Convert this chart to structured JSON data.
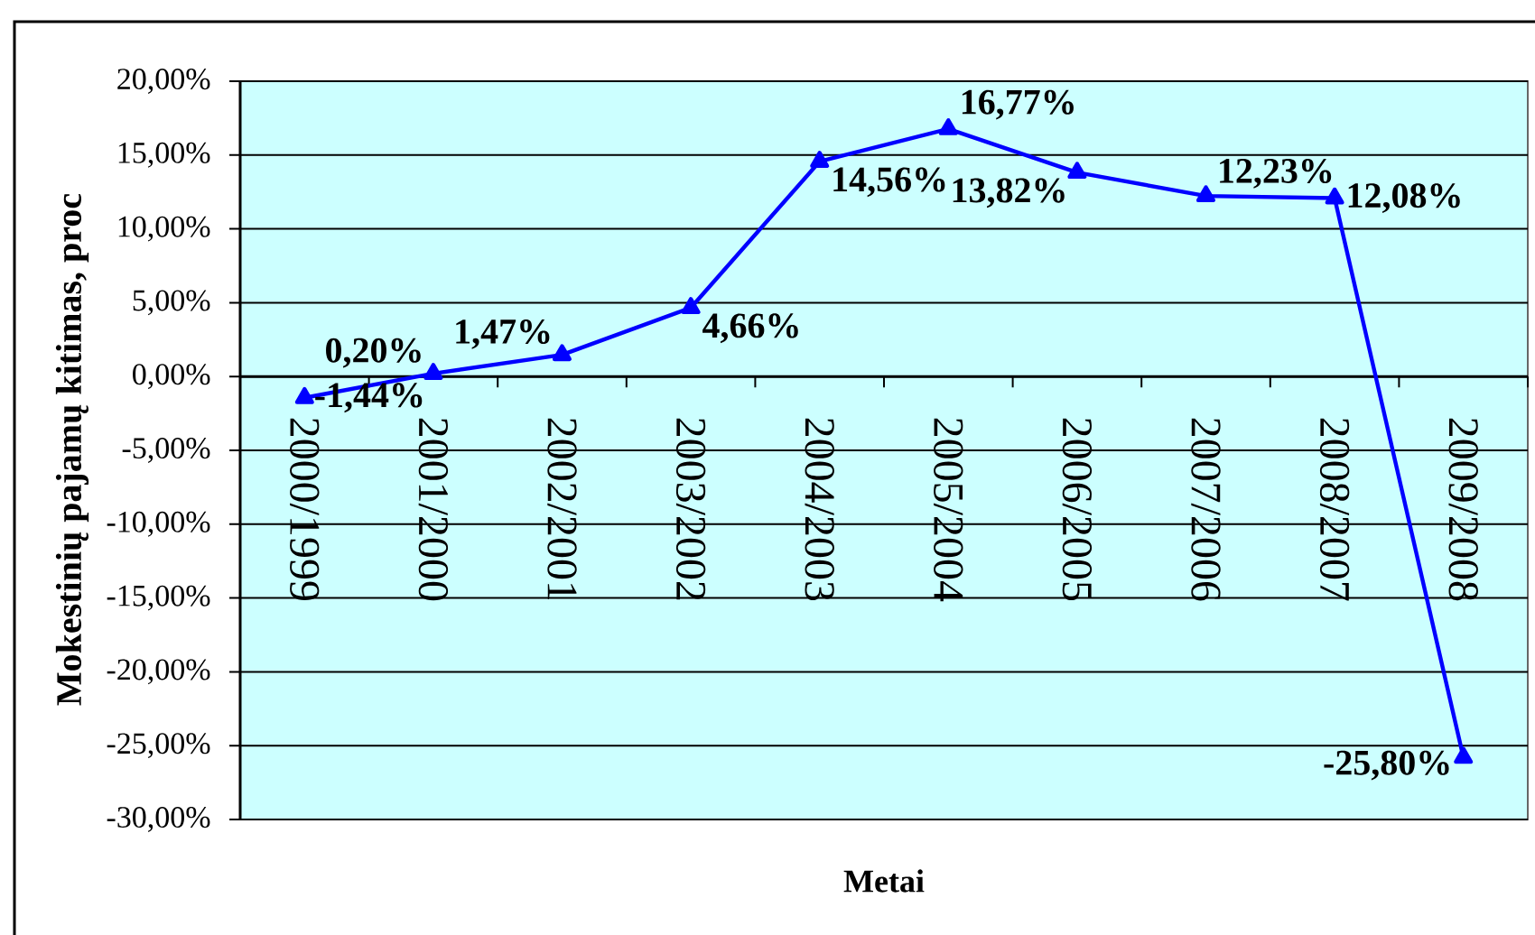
{
  "chart_data": {
    "type": "line",
    "xlabel": "Metai",
    "ylabel": "Mokestinių pajamų kitimas, proc",
    "categories": [
      "2000/1999",
      "2001/2000",
      "2002/2001",
      "2003/2002",
      "2004/2003",
      "2005/2004",
      "2006/2005",
      "2007/2006",
      "2008/2007",
      "2009/2008"
    ],
    "series": [
      {
        "color": "#0000ff",
        "values": [
          -1.44,
          0.2,
          1.47,
          4.66,
          14.56,
          16.77,
          13.82,
          12.23,
          12.08,
          -25.8
        ],
        "value_labels": [
          "-1,44%",
          "0,20%",
          "1,47%",
          "4,66%",
          "14,56%",
          "16,77%",
          "13,82%",
          "12,23%",
          "12,08%",
          "-25,80%"
        ]
      }
    ],
    "ylim": [
      -30,
      20
    ],
    "yticks": [
      {
        "value": -30,
        "label": "-30,00%"
      },
      {
        "value": -25,
        "label": "-25,00%"
      },
      {
        "value": -20,
        "label": "-20,00%"
      },
      {
        "value": -15,
        "label": "-15,00%"
      },
      {
        "value": -10,
        "label": "-10,00%"
      },
      {
        "value": -5,
        "label": "-5,00%"
      },
      {
        "value": 0,
        "label": "0,00%"
      },
      {
        "value": 5,
        "label": "5,00%"
      },
      {
        "value": 10,
        "label": "10,00%"
      },
      {
        "value": 15,
        "label": "15,00%"
      },
      {
        "value": 20,
        "label": "20,00%"
      }
    ],
    "grid": "y",
    "marker": "triangle",
    "line_style": "solid"
  }
}
